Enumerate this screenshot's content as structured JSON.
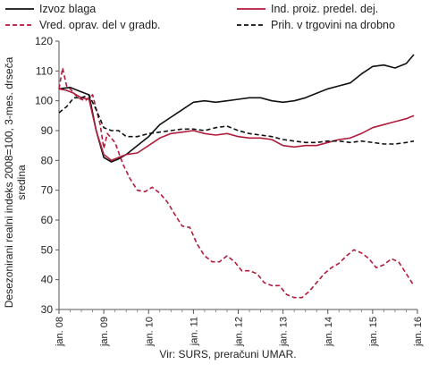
{
  "chart_data": {
    "type": "line",
    "title": "",
    "xlabel": "",
    "ylabel": "Desezonirani realni indeks 2008=100, 3-mes. drseča sredina",
    "ylabel_lines": [
      "Desezonirani realni indeks 2008=100, 3-mes. drseča",
      "sredina"
    ],
    "source": "Vir: SURS, preračuni UMAR.",
    "ylim": [
      30,
      120
    ],
    "yticks": [
      "30",
      "40",
      "50",
      "60",
      "70",
      "80",
      "90",
      "100",
      "110",
      "120"
    ],
    "xlim": [
      2008.0,
      2016.0
    ],
    "xticks": [
      "jan. 08",
      "jan. 09",
      "jan. 10",
      "jan. 11",
      "jan. 12",
      "jan. 13",
      "jan. 14",
      "jan. 15",
      "jan. 16"
    ],
    "grid": false,
    "legend_position": "top",
    "series": [
      {
        "name": "Izvoz blaga",
        "color": "#111111",
        "dash": "solid",
        "x": [
          2008.0,
          2008.25,
          2008.5,
          2008.67,
          2008.83,
          2009.0,
          2009.17,
          2009.33,
          2009.5,
          2009.75,
          2010.0,
          2010.25,
          2010.5,
          2010.75,
          2011.0,
          2011.25,
          2011.5,
          2011.75,
          2012.0,
          2012.25,
          2012.5,
          2012.75,
          2013.0,
          2013.25,
          2013.5,
          2013.75,
          2014.0,
          2014.25,
          2014.5,
          2014.75,
          2015.0,
          2015.25,
          2015.5,
          2015.75,
          2015.92
        ],
        "values": [
          104,
          104.5,
          103,
          102,
          90,
          81,
          79.5,
          80.5,
          82,
          85,
          88,
          92,
          94.5,
          97,
          99.5,
          100,
          99.5,
          100,
          100.5,
          101,
          101,
          100,
          99.5,
          100,
          101,
          102.5,
          104,
          105,
          106,
          109,
          111.5,
          112,
          111,
          112.5,
          115.5
        ]
      },
      {
        "name": "Ind. proiz. predel. dej.",
        "color": "#b01c3c",
        "dash": "solid",
        "x": [
          2008.0,
          2008.17,
          2008.33,
          2008.5,
          2008.67,
          2008.83,
          2009.0,
          2009.17,
          2009.33,
          2009.5,
          2009.75,
          2010.0,
          2010.25,
          2010.5,
          2010.75,
          2011.0,
          2011.25,
          2011.5,
          2011.75,
          2012.0,
          2012.25,
          2012.5,
          2012.75,
          2013.0,
          2013.25,
          2013.5,
          2013.75,
          2014.0,
          2014.25,
          2014.5,
          2014.75,
          2015.0,
          2015.25,
          2015.5,
          2015.75,
          2015.92
        ],
        "values": [
          104,
          103.5,
          102.5,
          101,
          100.5,
          90,
          82,
          80,
          81,
          82,
          82.5,
          85,
          87.5,
          89,
          89.5,
          90,
          89,
          88.5,
          89,
          88,
          87.5,
          87.5,
          87,
          85,
          84.5,
          85,
          85,
          86,
          87,
          87.5,
          89,
          91,
          92,
          93,
          94,
          95
        ]
      },
      {
        "name": "Vred. oprav. del v gradb.",
        "color": "#b01c3c",
        "dash": "dashed",
        "x": [
          2008.0,
          2008.08,
          2008.17,
          2008.25,
          2008.42,
          2008.58,
          2008.75,
          2008.92,
          2009.0,
          2009.08,
          2009.25,
          2009.42,
          2009.58,
          2009.75,
          2009.92,
          2010.08,
          2010.25,
          2010.42,
          2010.58,
          2010.75,
          2010.92,
          2011.08,
          2011.25,
          2011.42,
          2011.58,
          2011.75,
          2011.92,
          2012.08,
          2012.25,
          2012.42,
          2012.58,
          2012.75,
          2012.92,
          2013.08,
          2013.25,
          2013.42,
          2013.58,
          2013.75,
          2013.92,
          2014.08,
          2014.25,
          2014.42,
          2014.58,
          2014.75,
          2014.92,
          2015.08,
          2015.25,
          2015.42,
          2015.58,
          2015.75,
          2015.92
        ],
        "values": [
          104,
          111,
          105,
          104,
          101,
          100,
          102,
          92,
          84,
          89,
          86,
          79,
          74,
          70,
          69.5,
          71,
          69,
          66,
          62,
          58,
          57.5,
          52,
          48,
          46,
          46,
          48,
          46,
          43,
          43,
          42,
          39,
          38,
          38,
          35,
          34,
          34,
          36,
          39,
          42,
          44,
          45.5,
          48,
          50,
          49,
          47,
          44,
          45,
          47,
          46,
          42,
          38
        ]
      },
      {
        "name": "Prih. v trgovini na drobno",
        "color": "#111111",
        "dash": "dashed",
        "x": [
          2008.0,
          2008.17,
          2008.33,
          2008.5,
          2008.67,
          2008.83,
          2009.0,
          2009.17,
          2009.33,
          2009.5,
          2009.75,
          2010.0,
          2010.25,
          2010.5,
          2010.75,
          2011.0,
          2011.25,
          2011.5,
          2011.75,
          2012.0,
          2012.25,
          2012.5,
          2012.75,
          2013.0,
          2013.25,
          2013.5,
          2013.75,
          2014.0,
          2014.25,
          2014.5,
          2014.75,
          2015.0,
          2015.25,
          2015.5,
          2015.75,
          2015.92
        ],
        "values": [
          96,
          98,
          101,
          101,
          102,
          97,
          91,
          90,
          90,
          88,
          88,
          89,
          89.5,
          90,
          90.5,
          90.5,
          90,
          91,
          91.5,
          90,
          89,
          88.5,
          88,
          87,
          86.5,
          86,
          86,
          86.5,
          86.5,
          86,
          86.5,
          86,
          85.5,
          85.5,
          86,
          86.5
        ]
      }
    ]
  }
}
